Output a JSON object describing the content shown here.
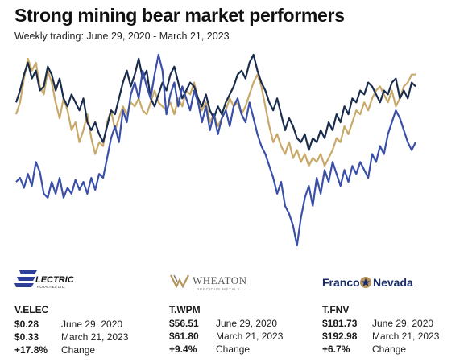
{
  "title": "Strong mining bear market performers",
  "subtitle": "Weekly trading: June 29, 2020 - March 21, 2023",
  "colors": {
    "elec": "#3a4fa8",
    "wpm": "#c9a96a",
    "fnv": "#1a2c4d"
  },
  "chart_data": {
    "type": "line",
    "title": "Strong mining bear market performers",
    "subtitle": "Weekly trading: June 29, 2020 - March 21, 2023",
    "x_range": [
      "2020-06-29",
      "2023-03-21"
    ],
    "normalized": true,
    "ylim": [
      0,
      1
    ],
    "grid": false,
    "legend": "none",
    "series": [
      {
        "name": "V.ELEC",
        "values": [
          0.36,
          0.38,
          0.33,
          0.4,
          0.34,
          0.46,
          0.41,
          0.3,
          0.28,
          0.36,
          0.3,
          0.38,
          0.28,
          0.33,
          0.3,
          0.37,
          0.32,
          0.36,
          0.3,
          0.38,
          0.32,
          0.4,
          0.38,
          0.48,
          0.58,
          0.64,
          0.56,
          0.72,
          0.66,
          0.8,
          0.86,
          0.78,
          0.92,
          0.84,
          0.78,
          0.9,
          1.0,
          0.92,
          0.7,
          0.8,
          0.86,
          0.74,
          0.84,
          0.78,
          0.72,
          0.82,
          0.76,
          0.66,
          0.74,
          0.62,
          0.7,
          0.6,
          0.68,
          0.72,
          0.64,
          0.74,
          0.78,
          0.7,
          0.66,
          0.76,
          0.68,
          0.6,
          0.54,
          0.5,
          0.44,
          0.38,
          0.3,
          0.36,
          0.24,
          0.2,
          0.14,
          0.04,
          0.18,
          0.28,
          0.34,
          0.24,
          0.38,
          0.3,
          0.42,
          0.36,
          0.46,
          0.4,
          0.34,
          0.42,
          0.36,
          0.44,
          0.4,
          0.46,
          0.42,
          0.38,
          0.5,
          0.46,
          0.54,
          0.5,
          0.6,
          0.66,
          0.72,
          0.68,
          0.62,
          0.56,
          0.52,
          0.56
        ]
      },
      {
        "name": "T.WPM",
        "values": [
          0.7,
          0.76,
          0.88,
          0.98,
          0.92,
          0.96,
          0.84,
          0.8,
          0.92,
          0.86,
          0.76,
          0.68,
          0.78,
          0.72,
          0.62,
          0.66,
          0.56,
          0.62,
          0.7,
          0.58,
          0.5,
          0.56,
          0.54,
          0.66,
          0.72,
          0.62,
          0.68,
          0.74,
          0.7,
          0.76,
          0.74,
          0.78,
          0.72,
          0.7,
          0.76,
          0.82,
          0.76,
          0.74,
          0.72,
          0.76,
          0.7,
          0.78,
          0.74,
          0.82,
          0.8,
          0.86,
          0.78,
          0.72,
          0.76,
          0.66,
          0.7,
          0.64,
          0.68,
          0.72,
          0.78,
          0.74,
          0.76,
          0.7,
          0.74,
          0.8,
          0.86,
          0.9,
          0.84,
          0.74,
          0.64,
          0.56,
          0.6,
          0.54,
          0.5,
          0.56,
          0.48,
          0.52,
          0.46,
          0.5,
          0.44,
          0.48,
          0.46,
          0.5,
          0.44,
          0.48,
          0.52,
          0.58,
          0.56,
          0.64,
          0.6,
          0.66,
          0.72,
          0.7,
          0.76,
          0.72,
          0.78,
          0.82,
          0.84,
          0.8,
          0.76,
          0.82,
          0.74,
          0.78,
          0.84,
          0.86,
          0.9,
          0.9
        ]
      },
      {
        "name": "T.FNV",
        "values": [
          0.76,
          0.82,
          0.9,
          0.96,
          0.88,
          0.92,
          0.82,
          0.84,
          0.94,
          0.9,
          0.82,
          0.88,
          0.78,
          0.74,
          0.8,
          0.76,
          0.72,
          0.78,
          0.66,
          0.62,
          0.66,
          0.6,
          0.56,
          0.64,
          0.72,
          0.7,
          0.78,
          0.86,
          0.92,
          0.84,
          0.9,
          0.98,
          0.88,
          0.92,
          0.78,
          0.74,
          0.8,
          0.86,
          0.82,
          0.9,
          0.94,
          0.86,
          0.78,
          0.82,
          0.86,
          0.84,
          0.78,
          0.74,
          0.8,
          0.72,
          0.68,
          0.74,
          0.7,
          0.76,
          0.8,
          0.84,
          0.9,
          0.92,
          0.88,
          0.96,
          1.0,
          0.92,
          0.86,
          0.82,
          0.76,
          0.72,
          0.78,
          0.7,
          0.62,
          0.68,
          0.64,
          0.58,
          0.56,
          0.6,
          0.52,
          0.58,
          0.56,
          0.62,
          0.58,
          0.66,
          0.62,
          0.7,
          0.66,
          0.74,
          0.7,
          0.78,
          0.76,
          0.82,
          0.8,
          0.86,
          0.84,
          0.8,
          0.76,
          0.82,
          0.8,
          0.86,
          0.88,
          0.78,
          0.82,
          0.78,
          0.86,
          0.84
        ]
      }
    ]
  },
  "stocks": [
    {
      "ticker": "V.ELEC",
      "logo_text": "LECTRIC",
      "logo_sub": "ROYALTIES LTD.",
      "start_price": "$0.28",
      "start_label": "June 29, 2020",
      "end_price": "$0.33",
      "end_label": "March 21, 2023",
      "change": "+17.8%",
      "change_label": "Change"
    },
    {
      "ticker": "T.WPM",
      "logo_text": "WHEATON",
      "logo_sub": "PRECIOUS METALS",
      "start_price": "$56.51",
      "start_label": "June 29, 2020",
      "end_price": "$61.80",
      "end_label": "March 21, 2023",
      "change": "+9.4%",
      "change_label": "Change"
    },
    {
      "ticker": "T.FNV",
      "logo_text_left": "Franco",
      "logo_text_right": "Nevada",
      "start_price": "$181.73",
      "start_label": "June 29, 2020",
      "end_price": "$192.98",
      "end_label": "March 21, 2023",
      "change": "+6.7%",
      "change_label": "Change"
    }
  ]
}
